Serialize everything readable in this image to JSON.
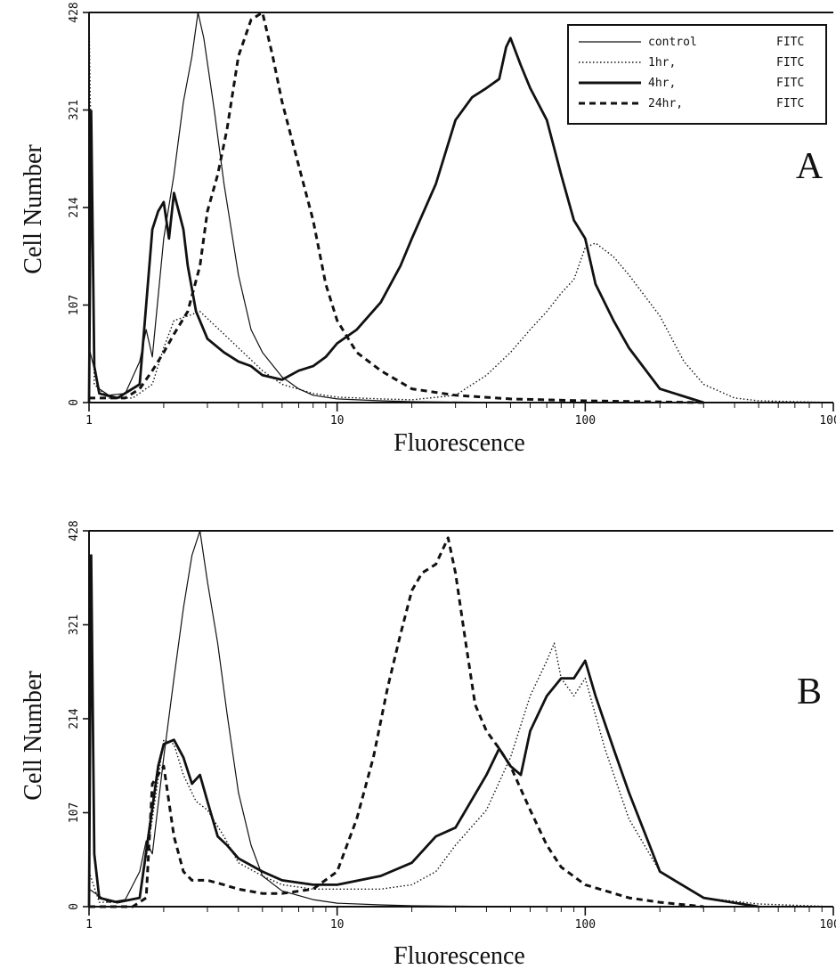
{
  "colors": {
    "ink": "#111111",
    "background": "#ffffff"
  },
  "chart_data": [
    {
      "type": "line",
      "panel": "A",
      "xlabel": "Fluorescence",
      "ylabel": "Cell Number",
      "x_scale": "log",
      "xlim": [
        1,
        1000
      ],
      "ylim": [
        0,
        428
      ],
      "xticks": [
        "1",
        "10",
        "100",
        "1000"
      ],
      "yticks": [
        "0",
        "107",
        "214",
        "321",
        "428"
      ],
      "legend": {
        "placement": "top-right",
        "entries": [
          {
            "name": "control",
            "label": "FITC",
            "style": "thin"
          },
          {
            "name": "1hr,",
            "label": "FITC",
            "style": "dotted"
          },
          {
            "name": "4hr,",
            "label": "FITC",
            "style": "thick"
          },
          {
            "name": "24hr,",
            "label": "FITC",
            "style": "dashed"
          }
        ]
      },
      "series": [
        {
          "name": "control",
          "style": "thin",
          "x": [
            1.0,
            1.1,
            1.2,
            1.4,
            1.6,
            1.7,
            1.8,
            2.0,
            2.2,
            2.4,
            2.6,
            2.75,
            2.9,
            3.2,
            3.5,
            4.0,
            4.5,
            5.0,
            6.0,
            7.0,
            8.0,
            10.0,
            15.0,
            20.0,
            50.0
          ],
          "y": [
            60,
            15,
            8,
            10,
            45,
            80,
            50,
            180,
            250,
            330,
            380,
            428,
            400,
            320,
            240,
            140,
            80,
            55,
            28,
            15,
            8,
            4,
            2,
            1,
            0
          ]
        },
        {
          "name": "1hr,",
          "style": "dotted",
          "x": [
            1.0,
            1.05,
            1.2,
            1.5,
            1.8,
            2.0,
            2.2,
            2.5,
            2.8,
            3.2,
            4.0,
            5.0,
            6.0,
            8.0,
            10.0,
            15.0,
            20.0,
            30.0,
            40.0,
            50.0,
            60.0,
            70.0,
            80.0,
            90.0,
            100.0,
            110.0,
            130.0,
            150.0,
            200.0,
            250.0,
            300.0,
            400.0,
            500.0,
            1000.0
          ],
          "y": [
            428,
            20,
            5,
            5,
            20,
            60,
            90,
            95,
            100,
            85,
            60,
            35,
            20,
            10,
            6,
            4,
            3,
            8,
            30,
            55,
            80,
            100,
            120,
            135,
            170,
            175,
            160,
            140,
            95,
            45,
            20,
            5,
            2,
            0
          ]
        },
        {
          "name": "4hr,",
          "style": "thick",
          "x": [
            1.0,
            1.02,
            1.05,
            1.1,
            1.3,
            1.6,
            1.8,
            1.9,
            2.0,
            2.1,
            2.2,
            2.4,
            2.5,
            2.7,
            3.0,
            3.5,
            4.0,
            4.5,
            5.0,
            6.0,
            7.0,
            8.0,
            9.0,
            10.0,
            12.0,
            15.0,
            18.0,
            20.0,
            25.0,
            30.0,
            35.0,
            40.0,
            45.0,
            48.0,
            50.0,
            55.0,
            60.0,
            70.0,
            80.0,
            90.0,
            100.0,
            110.0,
            130.0,
            150.0,
            200.0,
            300.0
          ],
          "y": [
            0,
            320,
            40,
            10,
            5,
            20,
            190,
            210,
            220,
            180,
            230,
            190,
            150,
            100,
            70,
            55,
            45,
            40,
            30,
            25,
            35,
            40,
            50,
            65,
            80,
            110,
            150,
            180,
            240,
            310,
            335,
            345,
            355,
            390,
            400,
            370,
            345,
            310,
            250,
            200,
            180,
            130,
            90,
            60,
            15,
            0
          ]
        },
        {
          "name": "24hr,",
          "style": "dashed",
          "x": [
            1.0,
            1.2,
            1.4,
            1.6,
            1.8,
            2.0,
            2.2,
            2.5,
            2.8,
            3.0,
            3.3,
            3.6,
            4.0,
            4.5,
            5.0,
            5.5,
            6.0,
            7.0,
            8.0,
            9.0,
            10.0,
            12.0,
            15.0,
            20.0,
            30.0,
            50.0,
            100.0,
            300.0
          ],
          "y": [
            5,
            5,
            5,
            15,
            35,
            55,
            75,
            100,
            150,
            210,
            250,
            300,
            380,
            420,
            428,
            380,
            330,
            260,
            200,
            130,
            90,
            55,
            35,
            15,
            8,
            4,
            2,
            0
          ]
        }
      ]
    },
    {
      "type": "line",
      "panel": "B",
      "xlabel": "Fluorescence",
      "ylabel": "Cell Number",
      "x_scale": "log",
      "xlim": [
        1,
        1000
      ],
      "ylim": [
        0,
        428
      ],
      "xticks": [
        "1",
        "10",
        "100",
        "1000"
      ],
      "yticks": [
        "0",
        "107",
        "214",
        "321",
        "428"
      ],
      "series": [
        {
          "name": "control",
          "style": "thin",
          "x": [
            1.0,
            1.2,
            1.4,
            1.6,
            1.7,
            1.8,
            2.0,
            2.2,
            2.4,
            2.6,
            2.8,
            3.0,
            3.3,
            3.6,
            4.0,
            4.5,
            5.0,
            6.0,
            8.0,
            10.0,
            15.0,
            20.0,
            50.0
          ],
          "y": [
            20,
            5,
            8,
            40,
            75,
            60,
            170,
            260,
            340,
            400,
            428,
            370,
            300,
            220,
            130,
            70,
            35,
            18,
            8,
            4,
            2,
            1,
            0
          ]
        },
        {
          "name": "1hr,",
          "style": "dotted",
          "x": [
            1.0,
            1.1,
            1.3,
            1.6,
            1.8,
            2.0,
            2.2,
            2.4,
            2.7,
            3.0,
            3.5,
            4.0,
            5.0,
            6.0,
            8.0,
            10.0,
            15.0,
            20.0,
            25.0,
            30.0,
            40.0,
            50.0,
            60.0,
            70.0,
            75.0,
            80.0,
            90.0,
            100.0,
            120.0,
            150.0,
            200.0,
            300.0,
            500.0,
            1000.0
          ],
          "y": [
            40,
            5,
            5,
            10,
            100,
            190,
            185,
            150,
            120,
            110,
            80,
            50,
            35,
            25,
            20,
            20,
            20,
            25,
            40,
            70,
            110,
            170,
            240,
            280,
            300,
            260,
            240,
            260,
            180,
            100,
            40,
            10,
            3,
            0
          ]
        },
        {
          "name": "4hr,",
          "style": "thick",
          "x": [
            1.0,
            1.02,
            1.05,
            1.1,
            1.3,
            1.6,
            1.9,
            2.0,
            2.2,
            2.4,
            2.6,
            2.8,
            3.0,
            3.3,
            3.6,
            4.0,
            5.0,
            6.0,
            8.0,
            10.0,
            15.0,
            20.0,
            25.0,
            30.0,
            40.0,
            45.0,
            50.0,
            55.0,
            60.0,
            70.0,
            80.0,
            90.0,
            100.0,
            110.0,
            130.0,
            150.0,
            200.0,
            300.0,
            500.0
          ],
          "y": [
            0,
            400,
            60,
            10,
            5,
            10,
            160,
            185,
            190,
            170,
            140,
            150,
            120,
            80,
            70,
            55,
            40,
            30,
            25,
            25,
            35,
            50,
            80,
            90,
            150,
            180,
            160,
            150,
            200,
            240,
            260,
            260,
            280,
            240,
            180,
            130,
            40,
            10,
            0
          ]
        },
        {
          "name": "24hr,",
          "style": "dashed",
          "x": [
            1.0,
            1.5,
            1.7,
            1.8,
            2.0,
            2.2,
            2.4,
            2.6,
            3.0,
            3.5,
            4.0,
            5.0,
            6.0,
            8.0,
            10.0,
            12.0,
            14.0,
            16.0,
            18.0,
            20.0,
            22.0,
            25.0,
            28.0,
            30.0,
            33.0,
            36.0,
            40.0,
            45.0,
            50.0,
            60.0,
            70.0,
            80.0,
            100.0,
            150.0,
            200.0,
            300.0
          ],
          "y": [
            0,
            0,
            10,
            140,
            160,
            80,
            40,
            30,
            30,
            25,
            20,
            15,
            15,
            20,
            40,
            100,
            170,
            250,
            310,
            360,
            380,
            390,
            420,
            380,
            300,
            230,
            200,
            180,
            160,
            110,
            70,
            45,
            25,
            10,
            5,
            0
          ]
        }
      ]
    }
  ]
}
